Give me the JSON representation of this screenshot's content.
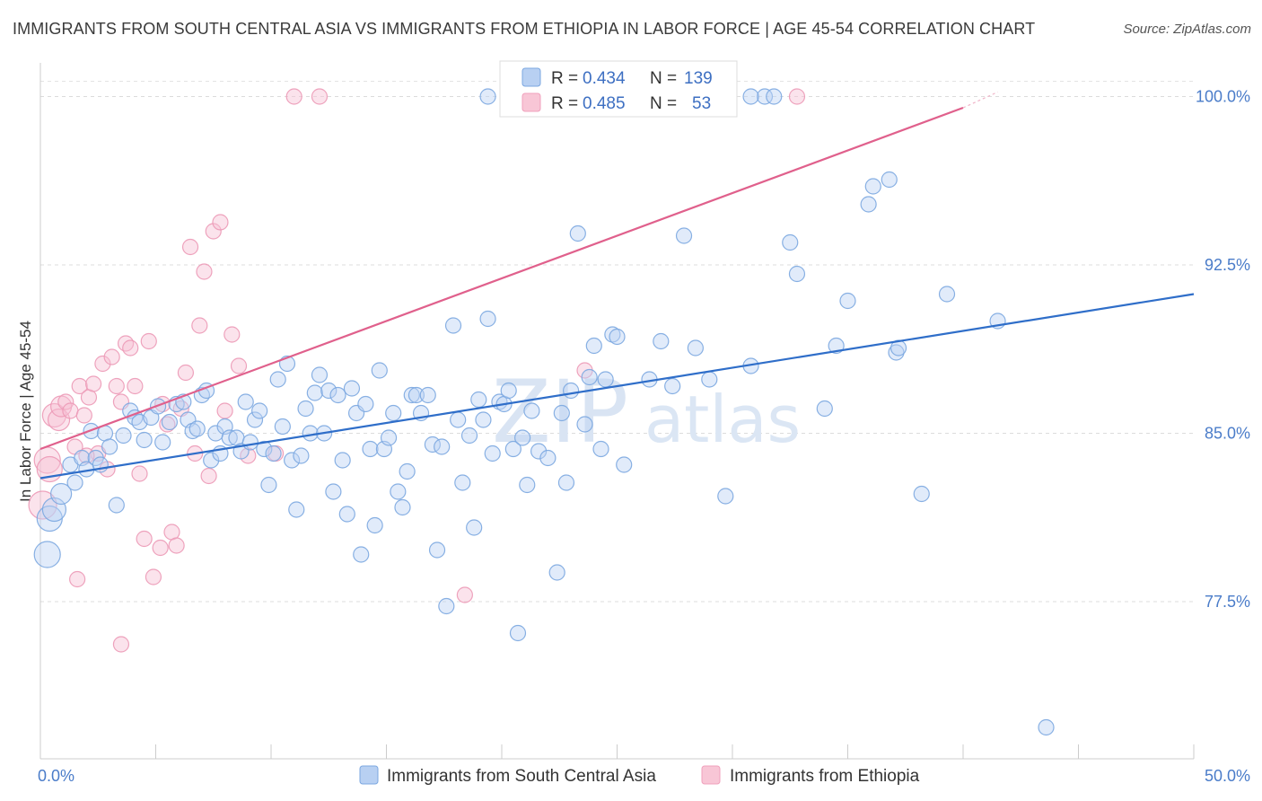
{
  "header": {
    "title": "IMMIGRANTS FROM SOUTH CENTRAL ASIA VS IMMIGRANTS FROM ETHIOPIA IN LABOR FORCE | AGE 45-54 CORRELATION CHART",
    "source": "Source: ZipAtlas.com"
  },
  "watermark": {
    "zip": "ZIP",
    "atlas": "atlas"
  },
  "chart_data": {
    "type": "scatter",
    "title": "IMMIGRANTS FROM SOUTH CENTRAL ASIA VS IMMIGRANTS FROM ETHIOPIA IN LABOR FORCE | AGE 45-54 CORRELATION CHART",
    "ylabel": "In Labor Force | Age 45-54",
    "xlabel": "",
    "xlim": [
      0,
      50
    ],
    "ylim": [
      70.5,
      101.5
    ],
    "x_tick_labels": [
      {
        "value": 0,
        "label": "0.0%"
      },
      {
        "value": 50,
        "label": "50.0%"
      }
    ],
    "y_tick_labels": [
      {
        "value": 100,
        "label": "100.0%"
      },
      {
        "value": 92.5,
        "label": "92.5%"
      },
      {
        "value": 85,
        "label": "85.0%"
      },
      {
        "value": 77.5,
        "label": "77.5%"
      }
    ],
    "grid": "horizontal dashed",
    "legend_placement": "top-center",
    "series": [
      {
        "name": "Immigrants from South Central Asia",
        "color": "#7ba7e0",
        "line_color": "#2f6ec9",
        "R": "0.434",
        "N": "139",
        "trend": {
          "x": [
            0,
            50
          ],
          "y": [
            83.0,
            91.2
          ]
        },
        "points": [
          [
            0.3,
            79.6
          ],
          [
            0.4,
            81.2
          ],
          [
            0.6,
            81.6
          ],
          [
            0.9,
            82.3
          ],
          [
            1.3,
            83.6
          ],
          [
            1.5,
            82.8
          ],
          [
            1.8,
            83.9
          ],
          [
            2.0,
            83.4
          ],
          [
            2.2,
            85.1
          ],
          [
            2.4,
            83.9
          ],
          [
            2.6,
            83.6
          ],
          [
            2.8,
            85.0
          ],
          [
            3.0,
            84.4
          ],
          [
            3.3,
            81.8
          ],
          [
            3.6,
            84.9
          ],
          [
            3.9,
            86.0
          ],
          [
            4.1,
            85.7
          ],
          [
            4.3,
            85.5
          ],
          [
            4.5,
            84.7
          ],
          [
            4.8,
            85.7
          ],
          [
            5.1,
            86.2
          ],
          [
            5.3,
            84.6
          ],
          [
            5.6,
            85.5
          ],
          [
            5.9,
            86.3
          ],
          [
            6.2,
            86.4
          ],
          [
            6.4,
            85.6
          ],
          [
            6.6,
            85.1
          ],
          [
            6.8,
            85.2
          ],
          [
            7.0,
            86.7
          ],
          [
            7.2,
            86.9
          ],
          [
            7.4,
            83.8
          ],
          [
            7.6,
            85.0
          ],
          [
            7.8,
            84.1
          ],
          [
            8.0,
            85.3
          ],
          [
            8.2,
            84.8
          ],
          [
            8.5,
            84.8
          ],
          [
            8.7,
            84.2
          ],
          [
            8.9,
            86.4
          ],
          [
            9.1,
            84.6
          ],
          [
            9.3,
            85.6
          ],
          [
            9.5,
            86.0
          ],
          [
            9.7,
            84.3
          ],
          [
            9.9,
            82.7
          ],
          [
            10.1,
            84.1
          ],
          [
            10.3,
            87.4
          ],
          [
            10.5,
            85.3
          ],
          [
            10.7,
            88.1
          ],
          [
            10.9,
            83.8
          ],
          [
            11.1,
            81.6
          ],
          [
            11.3,
            84.0
          ],
          [
            11.5,
            86.1
          ],
          [
            11.7,
            85.0
          ],
          [
            11.9,
            86.8
          ],
          [
            12.1,
            87.6
          ],
          [
            12.3,
            85.0
          ],
          [
            12.5,
            86.9
          ],
          [
            12.7,
            82.4
          ],
          [
            12.9,
            86.7
          ],
          [
            13.1,
            83.8
          ],
          [
            13.3,
            81.4
          ],
          [
            13.5,
            87.0
          ],
          [
            13.7,
            85.9
          ],
          [
            13.9,
            79.6
          ],
          [
            14.1,
            86.3
          ],
          [
            14.3,
            84.3
          ],
          [
            14.5,
            80.9
          ],
          [
            14.7,
            87.8
          ],
          [
            14.9,
            84.3
          ],
          [
            15.1,
            84.8
          ],
          [
            15.3,
            85.9
          ],
          [
            15.5,
            82.4
          ],
          [
            15.7,
            81.7
          ],
          [
            15.9,
            83.3
          ],
          [
            16.1,
            86.7
          ],
          [
            16.3,
            86.7
          ],
          [
            16.5,
            85.9
          ],
          [
            16.8,
            86.7
          ],
          [
            17.0,
            84.5
          ],
          [
            17.2,
            79.8
          ],
          [
            17.4,
            84.4
          ],
          [
            17.6,
            77.3
          ],
          [
            17.9,
            89.8
          ],
          [
            18.1,
            85.6
          ],
          [
            18.3,
            82.8
          ],
          [
            18.6,
            84.9
          ],
          [
            18.8,
            80.8
          ],
          [
            19.0,
            86.5
          ],
          [
            19.2,
            85.6
          ],
          [
            19.4,
            90.1
          ],
          [
            19.6,
            84.1
          ],
          [
            19.9,
            86.4
          ],
          [
            20.1,
            86.3
          ],
          [
            20.3,
            86.9
          ],
          [
            20.5,
            84.3
          ],
          [
            20.7,
            76.1
          ],
          [
            20.9,
            84.8
          ],
          [
            21.1,
            82.7
          ],
          [
            21.3,
            86.0
          ],
          [
            21.6,
            84.2
          ],
          [
            22.0,
            83.9
          ],
          [
            22.4,
            78.8
          ],
          [
            22.6,
            85.9
          ],
          [
            22.8,
            82.8
          ],
          [
            23.0,
            86.9
          ],
          [
            23.3,
            93.9
          ],
          [
            23.6,
            85.4
          ],
          [
            23.8,
            87.5
          ],
          [
            24.0,
            88.9
          ],
          [
            24.3,
            84.3
          ],
          [
            24.5,
            87.4
          ],
          [
            24.8,
            89.4
          ],
          [
            25.0,
            89.3
          ],
          [
            25.3,
            83.6
          ],
          [
            26.4,
            87.4
          ],
          [
            26.9,
            89.1
          ],
          [
            27.4,
            87.1
          ],
          [
            27.9,
            93.8
          ],
          [
            28.4,
            88.8
          ],
          [
            29.0,
            87.4
          ],
          [
            29.7,
            82.2
          ],
          [
            30.8,
            88.0
          ],
          [
            31.4,
            100.0
          ],
          [
            31.8,
            100.0
          ],
          [
            32.5,
            93.5
          ],
          [
            32.8,
            92.1
          ],
          [
            34.0,
            86.1
          ],
          [
            34.5,
            88.9
          ],
          [
            35.0,
            90.9
          ],
          [
            35.9,
            95.2
          ],
          [
            36.1,
            96.0
          ],
          [
            36.8,
            96.3
          ],
          [
            37.1,
            88.6
          ],
          [
            37.2,
            88.8
          ],
          [
            38.2,
            82.3
          ],
          [
            39.3,
            91.2
          ],
          [
            41.5,
            90.0
          ],
          [
            43.6,
            71.9
          ],
          [
            30.8,
            100.0
          ],
          [
            24.8,
            100.0
          ],
          [
            19.4,
            100.0
          ],
          [
            21.0,
            100.0
          ]
        ]
      },
      {
        "name": "Immigrants from Ethiopia",
        "color": "#f0a0bc",
        "line_color": "#e0608c",
        "R": "0.485",
        "N": "53",
        "trend": {
          "x": [
            0,
            40.0
          ],
          "y": [
            84.3,
            99.5
          ]
        },
        "points": [
          [
            0.1,
            81.8
          ],
          [
            0.3,
            83.8
          ],
          [
            0.4,
            83.4
          ],
          [
            0.6,
            85.8
          ],
          [
            0.8,
            85.6
          ],
          [
            0.9,
            86.2
          ],
          [
            1.1,
            86.4
          ],
          [
            1.3,
            86.0
          ],
          [
            1.5,
            84.4
          ],
          [
            1.7,
            87.1
          ],
          [
            1.9,
            85.8
          ],
          [
            2.1,
            86.6
          ],
          [
            2.3,
            87.2
          ],
          [
            2.5,
            84.1
          ],
          [
            2.7,
            88.1
          ],
          [
            2.9,
            83.4
          ],
          [
            3.1,
            88.4
          ],
          [
            3.3,
            87.1
          ],
          [
            3.5,
            86.4
          ],
          [
            3.7,
            89.0
          ],
          [
            3.9,
            88.8
          ],
          [
            4.1,
            87.1
          ],
          [
            4.3,
            83.2
          ],
          [
            4.5,
            80.3
          ],
          [
            4.7,
            89.1
          ],
          [
            4.9,
            78.6
          ],
          [
            5.3,
            86.3
          ],
          [
            5.5,
            85.4
          ],
          [
            5.7,
            80.6
          ],
          [
            5.9,
            80.0
          ],
          [
            6.1,
            86.1
          ],
          [
            6.3,
            87.7
          ],
          [
            6.5,
            93.3
          ],
          [
            6.7,
            84.1
          ],
          [
            6.9,
            89.8
          ],
          [
            7.1,
            92.2
          ],
          [
            7.3,
            83.1
          ],
          [
            7.5,
            94.0
          ],
          [
            7.8,
            94.4
          ],
          [
            8.0,
            86.0
          ],
          [
            8.3,
            89.4
          ],
          [
            8.6,
            88.0
          ],
          [
            9.0,
            84.0
          ],
          [
            10.2,
            84.1
          ],
          [
            11.0,
            100.0
          ],
          [
            12.1,
            100.0
          ],
          [
            18.4,
            77.8
          ],
          [
            23.6,
            87.8
          ],
          [
            32.8,
            100.0
          ],
          [
            1.6,
            78.5
          ],
          [
            3.5,
            75.6
          ],
          [
            5.2,
            79.9
          ],
          [
            2.0,
            84.0
          ]
        ]
      }
    ]
  },
  "legend": {
    "r_label": "R =",
    "n_label": "N =",
    "items": [
      {
        "r": "0.434",
        "n": "139"
      },
      {
        "r": "0.485",
        "n": "53"
      }
    ]
  },
  "bottom_legend": [
    {
      "label": "Immigrants from South Central Asia"
    },
    {
      "label": "Immigrants from Ethiopia"
    }
  ]
}
